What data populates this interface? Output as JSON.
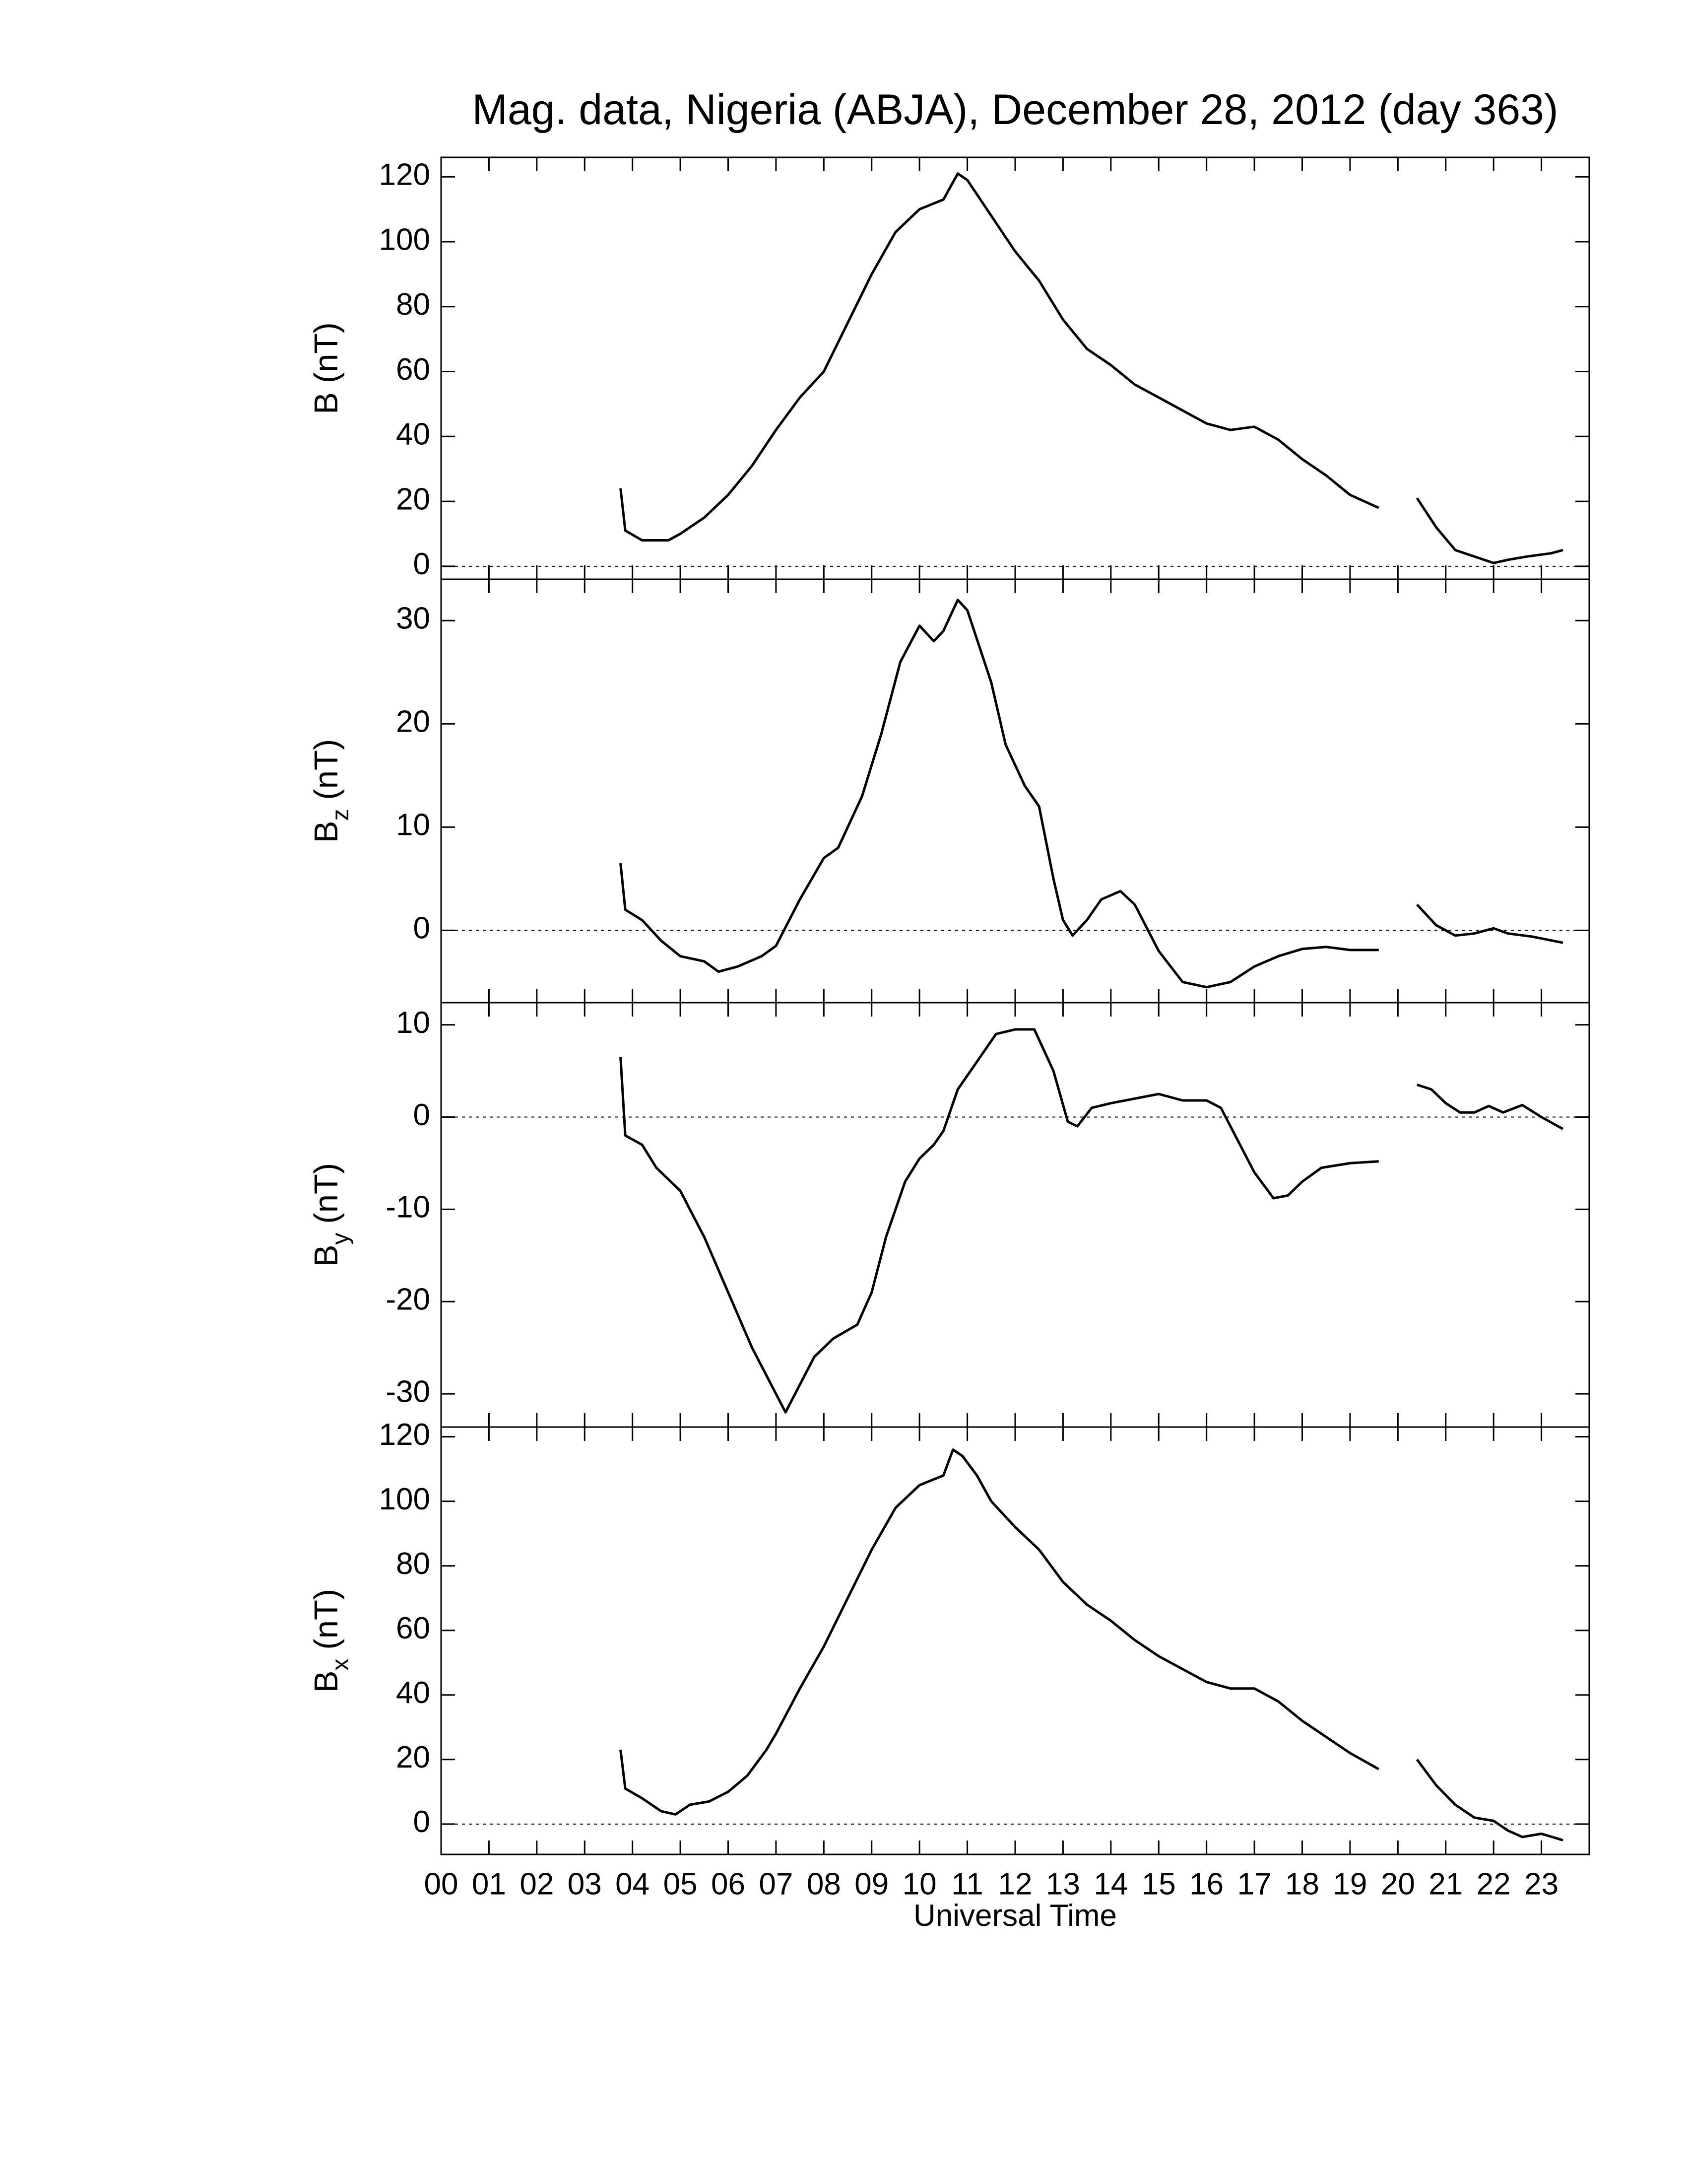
{
  "chart_data": [
    {
      "type": "line",
      "title": "Mag. data, Nigeria (ABJA), December 28, 2012 (day 363)",
      "ylabel": "B",
      "ylabel_unit": "(nT)",
      "color": "#000000",
      "zero_line": true,
      "xlim": [
        0,
        24
      ],
      "ylim": [
        -4,
        126
      ],
      "yticks": [
        0,
        20,
        40,
        60,
        80,
        100,
        120
      ],
      "x": [
        3.75,
        3.85,
        4.2,
        4.75,
        5.0,
        5.5,
        6.0,
        6.5,
        7.0,
        7.5,
        8.0,
        8.5,
        9.0,
        9.5,
        10.0,
        10.5,
        10.8,
        11.0,
        11.5,
        12.0,
        12.5,
        13.0,
        13.5,
        14.0,
        14.5,
        15.0,
        15.5,
        16.0,
        16.5,
        17.0,
        17.5,
        18.0,
        18.5,
        19.0,
        19.6,
        20.0,
        20.4,
        20.8,
        21.2,
        21.6,
        22.0,
        22.3,
        22.7,
        23.2,
        23.45
      ],
      "values": [
        24,
        11,
        8,
        8,
        10,
        15,
        22,
        31,
        42,
        52,
        60,
        75,
        90,
        103,
        110,
        113,
        121,
        119,
        108,
        97,
        88,
        76,
        67,
        62,
        56,
        52,
        48,
        44,
        42,
        43,
        39,
        33,
        28,
        22,
        18,
        null,
        21,
        12,
        5,
        3,
        1,
        2,
        3,
        4,
        5
      ]
    },
    {
      "type": "line",
      "ylabel": "B",
      "ylabel_subscript": "z",
      "ylabel_unit": "(nT)",
      "color": "#000000",
      "zero_line": true,
      "xlim": [
        0,
        24
      ],
      "ylim": [
        -7,
        34
      ],
      "yticks": [
        0,
        10,
        20,
        30
      ],
      "x": [
        3.75,
        3.85,
        4.2,
        4.6,
        5.0,
        5.5,
        5.8,
        6.2,
        6.7,
        7.0,
        7.5,
        8.0,
        8.3,
        8.8,
        9.2,
        9.6,
        10.0,
        10.3,
        10.5,
        10.8,
        11.0,
        11.5,
        11.8,
        12.2,
        12.5,
        12.8,
        13.0,
        13.2,
        13.5,
        13.8,
        14.2,
        14.5,
        15.0,
        15.5,
        16.0,
        16.5,
        17.0,
        17.5,
        18.0,
        18.5,
        19.0,
        19.6,
        20.0,
        20.4,
        20.8,
        21.2,
        21.6,
        22.0,
        22.3,
        22.8,
        23.45
      ],
      "values": [
        6.5,
        2,
        1,
        -1,
        -2.5,
        -3,
        -4,
        -3.5,
        -2.5,
        -1.5,
        3,
        7,
        8,
        13,
        19,
        26,
        29.5,
        28,
        29,
        32,
        31,
        24,
        18,
        14,
        12,
        5,
        1,
        -0.5,
        1,
        3,
        3.8,
        2.5,
        -2,
        -5,
        -5.5,
        -5,
        -3.5,
        -2.5,
        -1.8,
        -1.6,
        -1.9,
        -1.9,
        null,
        2.5,
        0.5,
        -0.5,
        -0.3,
        0.2,
        -0.3,
        -0.6,
        -1.2
      ]
    },
    {
      "type": "line",
      "ylabel": "B",
      "ylabel_subscript": "y",
      "ylabel_unit": "(nT)",
      "color": "#000000",
      "zero_line": true,
      "xlim": [
        0,
        24
      ],
      "ylim": [
        -33.6,
        12.4
      ],
      "yticks": [
        -30,
        -20,
        -10,
        0,
        10
      ],
      "x": [
        3.75,
        3.85,
        4.2,
        4.5,
        5.0,
        5.5,
        6.0,
        6.5,
        7.0,
        7.2,
        7.5,
        7.8,
        8.2,
        8.7,
        9.0,
        9.3,
        9.7,
        10.0,
        10.3,
        10.5,
        10.8,
        11.2,
        11.6,
        12.0,
        12.4,
        12.8,
        13.1,
        13.3,
        13.6,
        14.0,
        14.5,
        15.0,
        15.5,
        16.0,
        16.3,
        16.6,
        17.0,
        17.4,
        17.7,
        18.0,
        18.4,
        19.0,
        19.6,
        20.0,
        20.4,
        20.7,
        21.0,
        21.3,
        21.6,
        21.9,
        22.2,
        22.6,
        23.0,
        23.45
      ],
      "values": [
        6.5,
        -2,
        -3,
        -5.5,
        -8,
        -13,
        -19,
        -25,
        -30,
        -32,
        -29,
        -26,
        -24,
        -22.5,
        -19,
        -13,
        -7,
        -4.5,
        -3,
        -1.5,
        3,
        6,
        9,
        9.5,
        9.5,
        5,
        -0.5,
        -1,
        1,
        1.5,
        2,
        2.5,
        1.8,
        1.8,
        1,
        -2,
        -6,
        -8.8,
        -8.5,
        -7,
        -5.5,
        -5,
        -4.8,
        null,
        3.5,
        3,
        1.5,
        0.5,
        0.5,
        1.2,
        0.5,
        1.3,
        0,
        -1.3
      ]
    },
    {
      "type": "line",
      "ylabel": "B",
      "ylabel_subscript": "x",
      "ylabel_unit": "(nT)",
      "xlabel": "Universal Time",
      "color": "#000000",
      "zero_line": true,
      "xlim": [
        0,
        24
      ],
      "ylim": [
        -9.4,
        123
      ],
      "yticks": [
        0,
        20,
        40,
        60,
        80,
        100,
        120
      ],
      "xticks": [
        {
          "value": 0,
          "label": "00"
        },
        {
          "value": 1,
          "label": "01"
        },
        {
          "value": 2,
          "label": "02"
        },
        {
          "value": 3,
          "label": "03"
        },
        {
          "value": 4,
          "label": "04"
        },
        {
          "value": 5,
          "label": "05"
        },
        {
          "value": 6,
          "label": "06"
        },
        {
          "value": 7,
          "label": "07"
        },
        {
          "value": 8,
          "label": "08"
        },
        {
          "value": 9,
          "label": "09"
        },
        {
          "value": 10,
          "label": "10"
        },
        {
          "value": 11,
          "label": "11"
        },
        {
          "value": 12,
          "label": "12"
        },
        {
          "value": 13,
          "label": "13"
        },
        {
          "value": 14,
          "label": "14"
        },
        {
          "value": 15,
          "label": "15"
        },
        {
          "value": 16,
          "label": "16"
        },
        {
          "value": 17,
          "label": "17"
        },
        {
          "value": 18,
          "label": "18"
        },
        {
          "value": 19,
          "label": "19"
        },
        {
          "value": 20,
          "label": "20"
        },
        {
          "value": 21,
          "label": "21"
        },
        {
          "value": 22,
          "label": "22"
        },
        {
          "value": 23,
          "label": "23"
        }
      ],
      "x": [
        3.75,
        3.85,
        4.2,
        4.6,
        4.9,
        5.2,
        5.6,
        6.0,
        6.4,
        6.8,
        7.0,
        7.5,
        8.0,
        8.5,
        9.0,
        9.5,
        10.0,
        10.5,
        10.7,
        10.9,
        11.2,
        11.5,
        12.0,
        12.5,
        13.0,
        13.5,
        14.0,
        14.5,
        15.0,
        15.5,
        16.0,
        16.5,
        17.0,
        17.5,
        18.0,
        18.5,
        19.0,
        19.6,
        20.0,
        20.4,
        20.8,
        21.2,
        21.6,
        22.0,
        22.3,
        22.6,
        23.0,
        23.45
      ],
      "values": [
        23,
        11,
        8,
        4,
        3,
        6,
        7,
        10,
        15,
        23,
        28,
        42,
        55,
        70,
        85,
        98,
        105,
        108,
        116,
        114,
        108,
        100,
        92,
        85,
        75,
        68,
        63,
        57,
        52,
        48,
        44,
        42,
        42,
        38,
        32,
        27,
        22,
        17,
        null,
        20,
        12,
        6,
        2,
        1,
        -2,
        -4,
        -3,
        -5
      ]
    }
  ]
}
